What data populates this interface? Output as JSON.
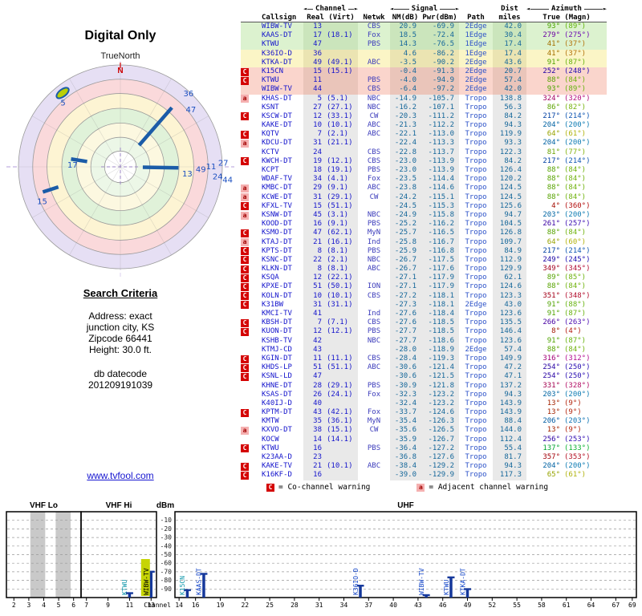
{
  "header": {
    "title": "Digital Only"
  },
  "radar_labels": {
    "orientation": "TrueNorth"
  },
  "criteria": {
    "title": "Search Criteria",
    "lines": [
      "Address: exact",
      "junction city, KS",
      "Zipcode 66441",
      "Height: 30.0 ft."
    ],
    "datec_label": "db datecode",
    "datecode": "201209191039"
  },
  "footer": {
    "link": "www.tvfool.com"
  },
  "legend": {
    "c_symbol": "C",
    "c_text": "= Co-channel warning",
    "a_symbol": "a",
    "a_text": "= Adjacent channel warning"
  },
  "table": {
    "groups": {
      "channel": "Channel",
      "signal": "Signal",
      "dist": "Dist",
      "azimuth": "Azimuth"
    },
    "cols": {
      "callsign": "Callsign",
      "real_virt": "Real (Virt)",
      "netwk": "Netwk",
      "nm": "NM(dB)",
      "pwr": "Pwr(dBm)",
      "path": "Path",
      "miles": "miles",
      "true_magn": "True (Magn)"
    },
    "rows": [
      {
        "w": "",
        "cs": "WIBW-TV",
        "real": "13",
        "virt": "",
        "net": "CBS",
        "nm": "20.9",
        "pwr": "-69.9",
        "path": "2Edge",
        "mi": "42.0",
        "tr": "93°",
        "mg": "(89°)",
        "tier": "green"
      },
      {
        "w": "",
        "cs": "KAAS-DT",
        "real": "17",
        "virt": "(18.1)",
        "net": "Fox",
        "nm": "18.5",
        "pwr": "-72.4",
        "path": "1Edge",
        "mi": "30.4",
        "tr": "279°",
        "mg": "(275°)",
        "tier": "green"
      },
      {
        "w": "",
        "cs": "KTWU",
        "real": "47",
        "virt": "",
        "net": "PBS",
        "nm": "14.3",
        "pwr": "-76.5",
        "path": "1Edge",
        "mi": "17.4",
        "tr": "41°",
        "mg": "(37°)",
        "tier": "green"
      },
      {
        "w": "",
        "cs": "K36IO-D",
        "real": "36",
        "virt": "",
        "net": "",
        "nm": "4.6",
        "pwr": "-86.2",
        "path": "1Edge",
        "mi": "17.4",
        "tr": "41°",
        "mg": "(37°)",
        "tier": "yellow"
      },
      {
        "w": "",
        "cs": "KTKA-DT",
        "real": "49",
        "virt": "(49.1)",
        "net": "ABC",
        "nm": "-3.5",
        "pwr": "-90.2",
        "path": "2Edge",
        "mi": "43.6",
        "tr": "91°",
        "mg": "(87°)",
        "tier": "yellow"
      },
      {
        "w": "C",
        "cs": "K15CN",
        "real": "15",
        "virt": "(15.1)",
        "net": "",
        "nm": "-0.4",
        "pwr": "-91.3",
        "path": "2Edge",
        "mi": "20.7",
        "tr": "252°",
        "mg": "(248°)",
        "tier": "pink"
      },
      {
        "w": "C",
        "cs": "KTWU",
        "real": "11",
        "virt": "",
        "net": "PBS",
        "nm": "-4.0",
        "pwr": "-94.9",
        "path": "2Edge",
        "mi": "57.4",
        "tr": "88°",
        "mg": "(84°)",
        "tier": "pink"
      },
      {
        "w": "",
        "cs": "WIBW-TV",
        "real": "44",
        "virt": "",
        "net": "CBS",
        "nm": "-6.4",
        "pwr": "-97.2",
        "path": "2Edge",
        "mi": "42.0",
        "tr": "93°",
        "mg": "(89°)",
        "tier": "pink"
      },
      {
        "w": "a",
        "cs": "KHAS-DT",
        "real": "5",
        "virt": "(5.1)",
        "net": "NBC",
        "nm": "-14.9",
        "pwr": "-105.7",
        "path": "Tropo",
        "mi": "138.8",
        "tr": "324°",
        "mg": "(320°)",
        "tier": ""
      },
      {
        "w": "",
        "cs": "KSNT",
        "real": "27",
        "virt": "(27.1)",
        "net": "NBC",
        "nm": "-16.2",
        "pwr": "-107.1",
        "path": "Tropo",
        "mi": "56.3",
        "tr": "86°",
        "mg": "(82°)",
        "tier": ""
      },
      {
        "w": "C",
        "cs": "KSCW-DT",
        "real": "12",
        "virt": "(33.1)",
        "net": "CW",
        "nm": "-20.3",
        "pwr": "-111.2",
        "path": "Tropo",
        "mi": "84.2",
        "tr": "217°",
        "mg": "(214°)",
        "tier": ""
      },
      {
        "w": "",
        "cs": "KAKE-DT",
        "real": "10",
        "virt": "(10.1)",
        "net": "ABC",
        "nm": "-21.3",
        "pwr": "-112.2",
        "path": "Tropo",
        "mi": "94.3",
        "tr": "204°",
        "mg": "(200°)",
        "tier": ""
      },
      {
        "w": "C",
        "cs": "KQTV",
        "real": "7",
        "virt": "(2.1)",
        "net": "ABC",
        "nm": "-22.1",
        "pwr": "-113.0",
        "path": "Tropo",
        "mi": "119.9",
        "tr": "64°",
        "mg": "(61°)",
        "tier": ""
      },
      {
        "w": "a",
        "cs": "KDCU-DT",
        "real": "31",
        "virt": "(21.1)",
        "net": "",
        "nm": "-22.4",
        "pwr": "-113.3",
        "path": "Tropo",
        "mi": "93.3",
        "tr": "204°",
        "mg": "(200°)",
        "tier": ""
      },
      {
        "w": "",
        "cs": "KCTV",
        "real": "24",
        "virt": "",
        "net": "CBS",
        "nm": "-22.8",
        "pwr": "-113.7",
        "path": "Tropo",
        "mi": "122.3",
        "tr": "81°",
        "mg": "(77°)",
        "tier": ""
      },
      {
        "w": "C",
        "cs": "KWCH-DT",
        "real": "19",
        "virt": "(12.1)",
        "net": "CBS",
        "nm": "-23.0",
        "pwr": "-113.9",
        "path": "Tropo",
        "mi": "84.2",
        "tr": "217°",
        "mg": "(214°)",
        "tier": ""
      },
      {
        "w": "",
        "cs": "KCPT",
        "real": "18",
        "virt": "(19.1)",
        "net": "PBS",
        "nm": "-23.0",
        "pwr": "-113.9",
        "path": "Tropo",
        "mi": "126.4",
        "tr": "88°",
        "mg": "(84°)",
        "tier": ""
      },
      {
        "w": "",
        "cs": "WDAF-TV",
        "real": "34",
        "virt": "(4.1)",
        "net": "Fox",
        "nm": "-23.5",
        "pwr": "-114.4",
        "path": "Tropo",
        "mi": "120.2",
        "tr": "88°",
        "mg": "(84°)",
        "tier": ""
      },
      {
        "w": "a",
        "cs": "KMBC-DT",
        "real": "29",
        "virt": "(9.1)",
        "net": "ABC",
        "nm": "-23.8",
        "pwr": "-114.6",
        "path": "Tropo",
        "mi": "124.5",
        "tr": "88°",
        "mg": "(84°)",
        "tier": ""
      },
      {
        "w": "a",
        "cs": "KCWE-DT",
        "real": "31",
        "virt": "(29.1)",
        "net": "CW",
        "nm": "-24.2",
        "pwr": "-115.1",
        "path": "Tropo",
        "mi": "124.5",
        "tr": "88°",
        "mg": "(84°)",
        "tier": ""
      },
      {
        "w": "C",
        "cs": "KFXL-TV",
        "real": "15",
        "virt": "(51.1)",
        "net": "",
        "nm": "-24.5",
        "pwr": "-115.3",
        "path": "Tropo",
        "mi": "125.6",
        "tr": "4°",
        "mg": "(360°)",
        "tier": ""
      },
      {
        "w": "a",
        "cs": "KSNW-DT",
        "real": "45",
        "virt": "(3.1)",
        "net": "NBC",
        "nm": "-24.9",
        "pwr": "-115.8",
        "path": "Tropo",
        "mi": "94.7",
        "tr": "203°",
        "mg": "(200°)",
        "tier": ""
      },
      {
        "w": "",
        "cs": "KOOD-DT",
        "real": "16",
        "virt": "(9.1)",
        "net": "PBS",
        "nm": "-25.2",
        "pwr": "-116.2",
        "path": "Tropo",
        "mi": "104.5",
        "tr": "261°",
        "mg": "(257°)",
        "tier": ""
      },
      {
        "w": "C",
        "cs": "KSMO-DT",
        "real": "47",
        "virt": "(62.1)",
        "net": "MyN",
        "nm": "-25.7",
        "pwr": "-116.5",
        "path": "Tropo",
        "mi": "126.8",
        "tr": "88°",
        "mg": "(84°)",
        "tier": ""
      },
      {
        "w": "a",
        "cs": "KTAJ-DT",
        "real": "21",
        "virt": "(16.1)",
        "net": "Ind",
        "nm": "-25.8",
        "pwr": "-116.7",
        "path": "Tropo",
        "mi": "109.7",
        "tr": "64°",
        "mg": "(60°)",
        "tier": ""
      },
      {
        "w": "C",
        "cs": "KPTS-DT",
        "real": "8",
        "virt": "(8.1)",
        "net": "PBS",
        "nm": "-25.9",
        "pwr": "-116.8",
        "path": "Tropo",
        "mi": "84.9",
        "tr": "217°",
        "mg": "(214°)",
        "tier": ""
      },
      {
        "w": "C",
        "cs": "KSNC-DT",
        "real": "22",
        "virt": "(2.1)",
        "net": "NBC",
        "nm": "-26.7",
        "pwr": "-117.5",
        "path": "Tropo",
        "mi": "112.9",
        "tr": "249°",
        "mg": "(245°)",
        "tier": ""
      },
      {
        "w": "C",
        "cs": "KLKN-DT",
        "real": "8",
        "virt": "(8.1)",
        "net": "ABC",
        "nm": "-26.7",
        "pwr": "-117.6",
        "path": "Tropo",
        "mi": "129.9",
        "tr": "349°",
        "mg": "(345°)",
        "tier": ""
      },
      {
        "w": "C",
        "cs": "KSQA",
        "real": "12",
        "virt": "(22.1)",
        "net": "",
        "nm": "-27.1",
        "pwr": "-117.9",
        "path": "Tropo",
        "mi": "62.1",
        "tr": "89°",
        "mg": "(85°)",
        "tier": ""
      },
      {
        "w": "C",
        "cs": "KPXE-DT",
        "real": "51",
        "virt": "(50.1)",
        "net": "ION",
        "nm": "-27.1",
        "pwr": "-117.9",
        "path": "Tropo",
        "mi": "124.6",
        "tr": "88°",
        "mg": "(84°)",
        "tier": ""
      },
      {
        "w": "C",
        "cs": "KOLN-DT",
        "real": "10",
        "virt": "(10.1)",
        "net": "CBS",
        "nm": "-27.2",
        "pwr": "-118.1",
        "path": "Tropo",
        "mi": "123.3",
        "tr": "351°",
        "mg": "(348°)",
        "tier": ""
      },
      {
        "w": "C",
        "cs": "K31BW",
        "real": "31",
        "virt": "(31.1)",
        "net": "",
        "nm": "-27.3",
        "pwr": "-118.1",
        "path": "2Edge",
        "mi": "43.0",
        "tr": "91°",
        "mg": "(88°)",
        "tier": ""
      },
      {
        "w": "",
        "cs": "KMCI-TV",
        "real": "41",
        "virt": "",
        "net": "Ind",
        "nm": "-27.6",
        "pwr": "-118.4",
        "path": "Tropo",
        "mi": "123.6",
        "tr": "91°",
        "mg": "(87°)",
        "tier": ""
      },
      {
        "w": "C",
        "cs": "KBSH-DT",
        "real": "7",
        "virt": "(7.1)",
        "net": "CBS",
        "nm": "-27.6",
        "pwr": "-118.5",
        "path": "Tropo",
        "mi": "135.5",
        "tr": "266°",
        "mg": "(263°)",
        "tier": ""
      },
      {
        "w": "C",
        "cs": "KUON-DT",
        "real": "12",
        "virt": "(12.1)",
        "net": "PBS",
        "nm": "-27.7",
        "pwr": "-118.5",
        "path": "Tropo",
        "mi": "146.4",
        "tr": "8°",
        "mg": "(4°)",
        "tier": ""
      },
      {
        "w": "",
        "cs": "KSHB-TV",
        "real": "42",
        "virt": "",
        "net": "NBC",
        "nm": "-27.7",
        "pwr": "-118.6",
        "path": "Tropo",
        "mi": "123.6",
        "tr": "91°",
        "mg": "(87°)",
        "tier": ""
      },
      {
        "w": "",
        "cs": "KTMJ-CD",
        "real": "43",
        "virt": "",
        "net": "",
        "nm": "-28.0",
        "pwr": "-118.9",
        "path": "2Edge",
        "mi": "57.4",
        "tr": "88°",
        "mg": "(84°)",
        "tier": ""
      },
      {
        "w": "C",
        "cs": "KGIN-DT",
        "real": "11",
        "virt": "(11.1)",
        "net": "CBS",
        "nm": "-28.4",
        "pwr": "-119.3",
        "path": "Tropo",
        "mi": "149.9",
        "tr": "316°",
        "mg": "(312°)",
        "tier": ""
      },
      {
        "w": "C",
        "cs": "KHDS-LP",
        "real": "51",
        "virt": "(51.1)",
        "net": "ABC",
        "nm": "-30.6",
        "pwr": "-121.4",
        "path": "Tropo",
        "mi": "47.2",
        "tr": "254°",
        "mg": "(250°)",
        "tier": ""
      },
      {
        "w": "C",
        "cs": "KSNL-LD",
        "real": "47",
        "virt": "",
        "net": "",
        "nm": "-30.6",
        "pwr": "-121.5",
        "path": "Tropo",
        "mi": "47.1",
        "tr": "254°",
        "mg": "(250°)",
        "tier": ""
      },
      {
        "w": "",
        "cs": "KHNE-DT",
        "real": "28",
        "virt": "(29.1)",
        "net": "PBS",
        "nm": "-30.9",
        "pwr": "-121.8",
        "path": "Tropo",
        "mi": "137.2",
        "tr": "331°",
        "mg": "(328°)",
        "tier": ""
      },
      {
        "w": "",
        "cs": "KSAS-DT",
        "real": "26",
        "virt": "(24.1)",
        "net": "Fox",
        "nm": "-32.3",
        "pwr": "-123.2",
        "path": "Tropo",
        "mi": "94.3",
        "tr": "203°",
        "mg": "(200°)",
        "tier": ""
      },
      {
        "w": "",
        "cs": "K40IJ-D",
        "real": "40",
        "virt": "",
        "net": "",
        "nm": "-32.4",
        "pwr": "-123.2",
        "path": "Tropo",
        "mi": "143.9",
        "tr": "13°",
        "mg": "(9°)",
        "tier": ""
      },
      {
        "w": "C",
        "cs": "KPTM-DT",
        "real": "43",
        "virt": "(42.1)",
        "net": "Fox",
        "nm": "-33.7",
        "pwr": "-124.6",
        "path": "Tropo",
        "mi": "143.9",
        "tr": "13°",
        "mg": "(9°)",
        "tier": ""
      },
      {
        "w": "",
        "cs": "KMTW",
        "real": "35",
        "virt": "(36.1)",
        "net": "MyN",
        "nm": "-35.4",
        "pwr": "-126.3",
        "path": "Tropo",
        "mi": "88.4",
        "tr": "206°",
        "mg": "(203°)",
        "tier": ""
      },
      {
        "w": "a",
        "cs": "KXVO-DT",
        "real": "38",
        "virt": "(15.1)",
        "net": "CW",
        "nm": "-35.6",
        "pwr": "-126.5",
        "path": "Tropo",
        "mi": "144.0",
        "tr": "13°",
        "mg": "(9°)",
        "tier": ""
      },
      {
        "w": "",
        "cs": "KOCW",
        "real": "14",
        "virt": "(14.1)",
        "net": "",
        "nm": "-35.9",
        "pwr": "-126.7",
        "path": "Tropo",
        "mi": "112.4",
        "tr": "256°",
        "mg": "(253°)",
        "tier": ""
      },
      {
        "w": "C",
        "cs": "KTWU",
        "real": "16",
        "virt": "",
        "net": "PBS",
        "nm": "-36.4",
        "pwr": "-127.2",
        "path": "Tropo",
        "mi": "55.4",
        "tr": "137°",
        "mg": "(133°)",
        "tier": ""
      },
      {
        "w": "",
        "cs": "K23AA-D",
        "real": "23",
        "virt": "",
        "net": "",
        "nm": "-36.8",
        "pwr": "-127.6",
        "path": "Tropo",
        "mi": "81.7",
        "tr": "357°",
        "mg": "(353°)",
        "tier": ""
      },
      {
        "w": "C",
        "cs": "KAKE-TV",
        "real": "21",
        "virt": "(10.1)",
        "net": "ABC",
        "nm": "-38.4",
        "pwr": "-129.2",
        "path": "Tropo",
        "mi": "94.3",
        "tr": "204°",
        "mg": "(200°)",
        "tier": ""
      },
      {
        "w": "C",
        "cs": "K16KF-D",
        "real": "16",
        "virt": "",
        "net": "",
        "nm": "-39.0",
        "pwr": "-129.9",
        "path": "Tropo",
        "mi": "117.3",
        "tr": "65°",
        "mg": "(61°)",
        "tier": ""
      }
    ]
  },
  "chart_data": [
    {
      "type": "scatter",
      "subtype": "polar_azimuth_radar",
      "title": "Digital Only",
      "orientation_label": "TrueNorth",
      "north_label": "N",
      "radial_meaning": "signal strength, stronger toward center",
      "rings": [
        {
          "r": 1.0,
          "fill": "#e6dff4"
        },
        {
          "r": 0.86,
          "fill": "#fad9db"
        },
        {
          "r": 0.72,
          "fill": "#fdf4d3"
        },
        {
          "r": 0.575,
          "fill": "#e0f2d9"
        },
        {
          "r": 0.43,
          "fill": "#fcf8e0"
        },
        {
          "r": 0.29,
          "fill": "#ecf7e7"
        },
        {
          "r": 0.155,
          "fill": "#ffffff"
        }
      ],
      "beams": [
        {
          "azimuth": 41,
          "r0": 0.28,
          "r1": 0.77
        },
        {
          "azimuth": 91,
          "r0": 0.22,
          "r1": 0.57
        },
        {
          "azimuth": 279,
          "r0": 0.33,
          "r1": 0.49
        },
        {
          "azimuth": 252,
          "r0": 0.64,
          "r1": 0.8
        }
      ],
      "marker_oval": {
        "azimuth": 322,
        "r": 0.92,
        "label": "5",
        "fill": "#b9cf08"
      },
      "labels": [
        {
          "text": "5",
          "azimuth": 318,
          "r": 0.84
        },
        {
          "text": "36",
          "azimuth": 43,
          "r": 0.98
        },
        {
          "text": "47",
          "azimuth": 51,
          "r": 0.89
        },
        {
          "text": "17",
          "azimuth": 272,
          "r": 0.47
        },
        {
          "text": "15",
          "azimuth": 246,
          "r": 0.84
        },
        {
          "text": "13",
          "azimuth": 96,
          "r": 0.66
        },
        {
          "text": "49",
          "azimuth": 92,
          "r": 0.79
        },
        {
          "text": "11",
          "azimuth": 90,
          "r": 0.89
        },
        {
          "text": "27",
          "azimuth": 88,
          "r": 1.01
        },
        {
          "text": "24",
          "azimuth": 96,
          "r": 0.96
        },
        {
          "text": "44",
          "azimuth": 97,
          "r": 1.06
        }
      ]
    },
    {
      "type": "bar",
      "subtype": "rf_spectrum",
      "panels": [
        "VHF Lo",
        "VHF Hi",
        "UHF"
      ],
      "ylabel": "dBm",
      "xlabel": "Channel",
      "yticks": [
        -10,
        -20,
        -30,
        -40,
        -50,
        -60,
        -70,
        -80,
        -90
      ],
      "xticks_vhf_lo": [
        2,
        3,
        4,
        5,
        6
      ],
      "xticks_vhf_hi": [
        7,
        9,
        11,
        13
      ],
      "xticks_uhf": [
        14,
        16,
        19,
        22,
        25,
        28,
        31,
        34,
        37,
        40,
        43,
        46,
        49,
        52,
        55,
        58,
        61,
        64,
        67,
        69
      ],
      "channel_ranges": {
        "vhf_lo": [
          2,
          6
        ],
        "vhf_hi": [
          7,
          13
        ],
        "uhf": [
          14,
          69
        ]
      },
      "shaded_channels_vhf_lo": [
        [
          3.6,
          4.6
        ],
        [
          5.3,
          6.3
        ]
      ],
      "bar_color": "#15389b",
      "label_color": "#1446c8",
      "highlight_color": "#c6d404",
      "stations": [
        {
          "callsign": "KTWU",
          "channel": 11,
          "pwr_dbm": -94.9,
          "color": "#0d96aa"
        },
        {
          "callsign": "WIBW-TV",
          "channel": 13,
          "pwr_dbm": -69.9,
          "highlight": true
        },
        {
          "callsign": "K15CN",
          "channel": 15,
          "pwr_dbm": -91.3,
          "color": "#0d96aa"
        },
        {
          "callsign": "KAAS-DT",
          "channel": 17,
          "pwr_dbm": -72.4
        },
        {
          "callsign": "K36IO-D",
          "channel": 36,
          "pwr_dbm": -86.2
        },
        {
          "callsign": "WIBW-TV",
          "channel": 44,
          "pwr_dbm": -97.2
        },
        {
          "callsign": "KTWU",
          "channel": 47,
          "pwr_dbm": -76.5
        },
        {
          "callsign": "KTKA-DT",
          "channel": 49,
          "pwr_dbm": -90.2
        }
      ]
    }
  ]
}
